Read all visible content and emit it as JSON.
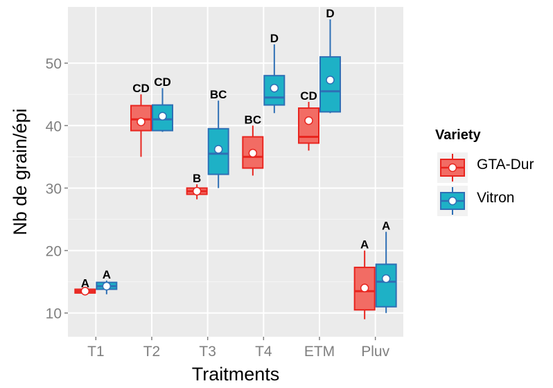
{
  "chart_data": {
    "type": "box",
    "xlabel": "Traitments",
    "ylabel": "Nb de grain/épi",
    "ylim": [
      6.2,
      59
    ],
    "y_ticks": [
      10,
      20,
      30,
      40,
      50
    ],
    "grid": true,
    "legend_position": "right",
    "legend": {
      "title": "Variety",
      "items": [
        {
          "name": "GTA-Dur",
          "fill": "#F26C64",
          "stroke": "#E8251F"
        },
        {
          "name": "Vitron",
          "fill": "#1EB1C6",
          "stroke": "#2E6FB5"
        }
      ]
    },
    "categories": [
      "T1",
      "T2",
      "T3",
      "T4",
      "ETM",
      "Pluv"
    ],
    "series": [
      {
        "name": "GTA-Dur",
        "boxes": [
          {
            "min": 13.2,
            "q1": 13.2,
            "median": 13.5,
            "q3": 13.8,
            "max": 13.8,
            "mean": 13.5,
            "letter": "A"
          },
          {
            "min": 35.0,
            "q1": 39.2,
            "median": 41.0,
            "q3": 43.2,
            "max": 45.0,
            "mean": 40.6,
            "letter": "CD"
          },
          {
            "min": 28.2,
            "q1": 29.0,
            "median": 29.5,
            "q3": 30.0,
            "max": 30.6,
            "mean": 29.5,
            "letter": "B"
          },
          {
            "min": 32.0,
            "q1": 33.2,
            "median": 35.0,
            "q3": 38.2,
            "max": 40.0,
            "mean": 35.6,
            "letter": "BC"
          },
          {
            "min": 36.0,
            "q1": 37.2,
            "median": 38.2,
            "q3": 42.8,
            "max": 43.8,
            "mean": 40.8,
            "letter": "CD"
          },
          {
            "min": 9.0,
            "q1": 10.5,
            "median": 13.5,
            "q3": 17.3,
            "max": 20.0,
            "mean": 14.0,
            "letter": "A"
          }
        ]
      },
      {
        "name": "Vitron",
        "boxes": [
          {
            "min": 13.0,
            "q1": 13.8,
            "median": 14.3,
            "q3": 14.9,
            "max": 15.2,
            "mean": 14.3,
            "letter": "A"
          },
          {
            "min": 39.0,
            "q1": 39.2,
            "median": 41.0,
            "q3": 43.3,
            "max": 46.0,
            "mean": 41.5,
            "letter": "CD"
          },
          {
            "min": 30.0,
            "q1": 32.2,
            "median": 35.5,
            "q3": 39.5,
            "max": 44.0,
            "mean": 36.2,
            "letter": "BC"
          },
          {
            "min": 42.0,
            "q1": 43.3,
            "median": 44.5,
            "q3": 48.0,
            "max": 53.0,
            "mean": 46.0,
            "letter": "D"
          },
          {
            "min": 42.0,
            "q1": 42.2,
            "median": 45.5,
            "q3": 51.0,
            "max": 57.0,
            "mean": 47.3,
            "letter": "D"
          },
          {
            "min": 10.0,
            "q1": 11.0,
            "median": 15.0,
            "q3": 17.8,
            "max": 23.0,
            "mean": 15.5,
            "letter": "A"
          }
        ]
      }
    ]
  }
}
